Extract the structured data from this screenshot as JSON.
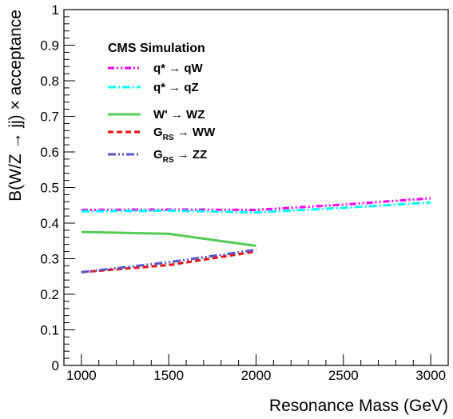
{
  "chart_data": {
    "type": "line",
    "title": "",
    "annotation": "CMS Simulation",
    "xlabel": "Resonance Mass (GeV)",
    "ylabel": "B(W/Z → jj) × acceptance",
    "xlim": [
      900,
      3100
    ],
    "ylim": [
      0,
      1
    ],
    "xticks": [
      "1000",
      "1500",
      "2000",
      "2500",
      "3000"
    ],
    "yticks": [
      "0",
      "0.1",
      "0.2",
      "0.3",
      "0.4",
      "0.5",
      "0.6",
      "0.7",
      "0.8",
      "0.9",
      "1"
    ],
    "grid": false,
    "legend_position": "top-left",
    "series": [
      {
        "id": "qstar-qw",
        "label_main": "q* → qW",
        "label_sub": "",
        "label_after": "",
        "color": "#ff00ff",
        "dash": "8 3 2 3 2 3",
        "x": [
          1000,
          1500,
          2000,
          2500,
          3000
        ],
        "y": [
          0.437,
          0.438,
          0.437,
          0.452,
          0.47
        ]
      },
      {
        "id": "qstar-qz",
        "label_main": "q* → qZ",
        "label_sub": "",
        "label_after": "",
        "color": "#00ffff",
        "dash": "10 3 2 3",
        "x": [
          1000,
          1500,
          2000,
          2500,
          3000
        ],
        "y": [
          0.433,
          0.435,
          0.43,
          0.443,
          0.458
        ]
      },
      {
        "id": "wprime-wz",
        "label_main": "W' → WZ",
        "label_sub": "",
        "label_after": "",
        "color": "#55cc55",
        "dash": "",
        "x": [
          1000,
          1500,
          2000
        ],
        "y": [
          0.375,
          0.37,
          0.336
        ]
      },
      {
        "id": "grs-ww",
        "label_main": "G",
        "label_sub": "RS",
        "label_after": " → WW",
        "color": "#ee1111",
        "dash": "7 4",
        "x": [
          1000,
          1500,
          2000
        ],
        "y": [
          0.262,
          0.282,
          0.32
        ]
      },
      {
        "id": "grs-zz",
        "label_main": "G",
        "label_sub": "RS",
        "label_after": " → ZZ",
        "color": "#5555cc",
        "dash": "10 3 2 3 2 3",
        "x": [
          1000,
          1500,
          2000
        ],
        "y": [
          0.262,
          0.29,
          0.325
        ]
      }
    ]
  }
}
